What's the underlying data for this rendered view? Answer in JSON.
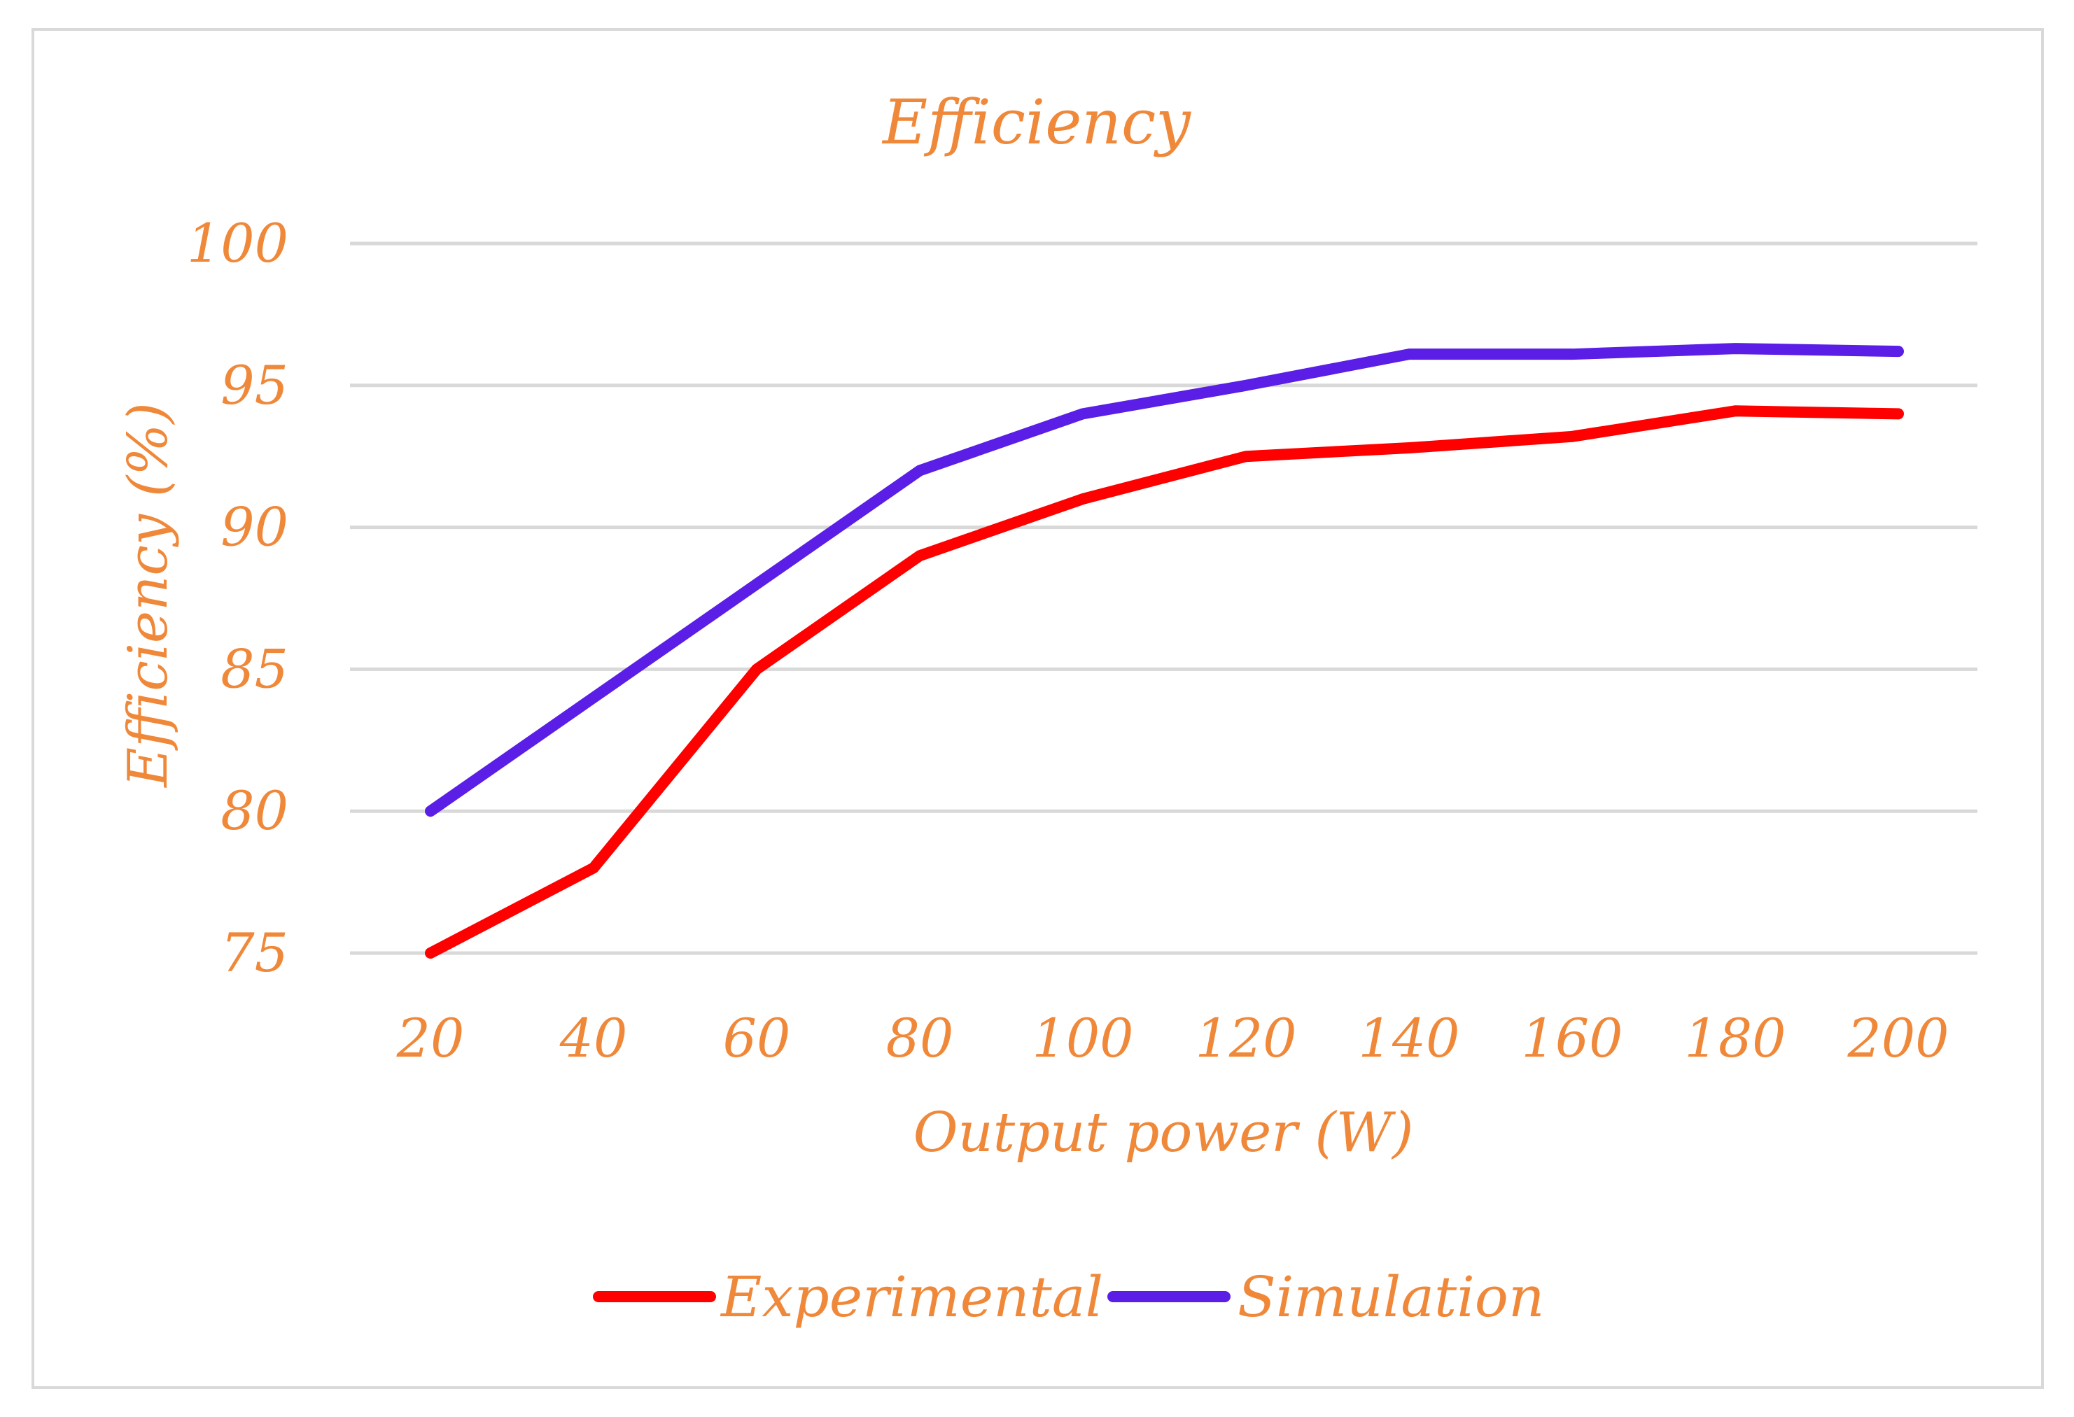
{
  "chart_data": {
    "type": "line",
    "title": "Efficiency",
    "xlabel": "Output power (W)",
    "ylabel": "Efficiency (%)",
    "categories": [
      "20",
      "40",
      "60",
      "80",
      "100",
      "120",
      "140",
      "160",
      "180",
      "200"
    ],
    "y_ticks": [
      "75",
      "80",
      "85",
      "90",
      "95",
      "100"
    ],
    "ylim": [
      75,
      100
    ],
    "grid": true,
    "legend_position": "bottom",
    "series": [
      {
        "name": "Experimental",
        "color": "#ff0000",
        "values": [
          75,
          78,
          85,
          89,
          91,
          92.5,
          92.8,
          93.2,
          94.1,
          94
        ]
      },
      {
        "name": "Simulation",
        "color": "#5a1ee6",
        "values": [
          80,
          84,
          88,
          92,
          94,
          95,
          96.1,
          96.1,
          96.3,
          96.2
        ]
      }
    ]
  },
  "colors": {
    "text": "#f0883a",
    "grid": "#d9d9d9",
    "border": "#d9d9d9"
  }
}
